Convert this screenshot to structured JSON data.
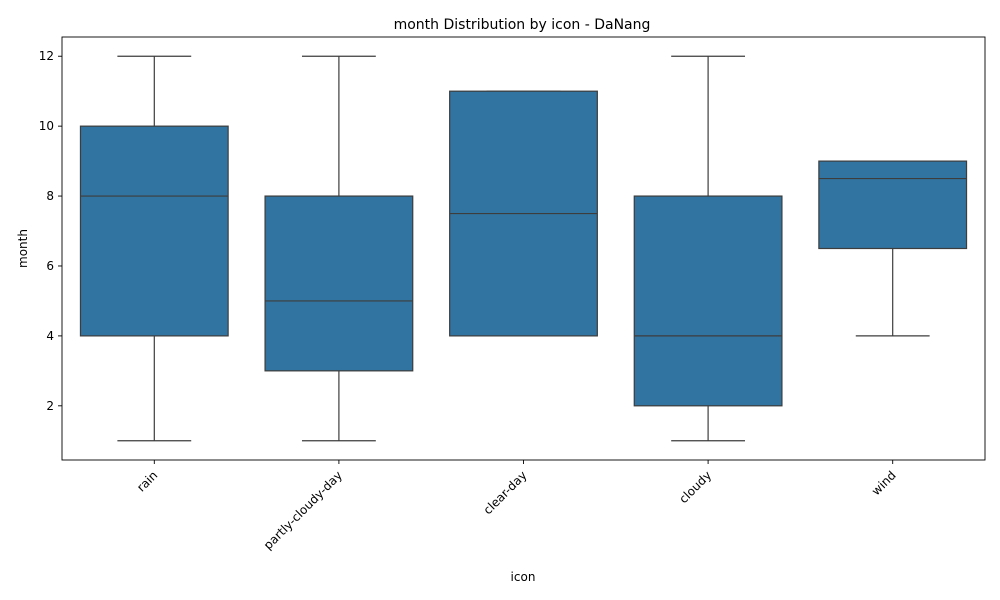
{
  "chart_data": {
    "type": "box",
    "title": "month Distribution by icon - DaNang",
    "xlabel": "icon",
    "ylabel": "month",
    "ylim": [
      0.45,
      12.55
    ],
    "yticks": [
      2,
      4,
      6,
      8,
      10,
      12
    ],
    "box_color": "#3274a1",
    "line_color": "#3d3d3d",
    "grid": false,
    "categories": [
      "rain",
      "partly-cloudy-day",
      "clear-day",
      "cloudy",
      "wind"
    ],
    "boxes": [
      {
        "category": "rain",
        "whisker_low": 1,
        "q1": 4,
        "median": 8,
        "q3": 10,
        "whisker_high": 12
      },
      {
        "category": "partly-cloudy-day",
        "whisker_low": 1,
        "q1": 3,
        "median": 5,
        "q3": 8,
        "whisker_high": 12
      },
      {
        "category": "clear-day",
        "whisker_low": 4,
        "q1": 4,
        "median": 7.5,
        "q3": 11,
        "whisker_high": 11
      },
      {
        "category": "cloudy",
        "whisker_low": 1,
        "q1": 2,
        "median": 4,
        "q3": 8,
        "whisker_high": 12
      },
      {
        "category": "wind",
        "whisker_low": 4,
        "q1": 6.5,
        "median": 8.5,
        "q3": 9,
        "whisker_high": 9
      }
    ]
  }
}
